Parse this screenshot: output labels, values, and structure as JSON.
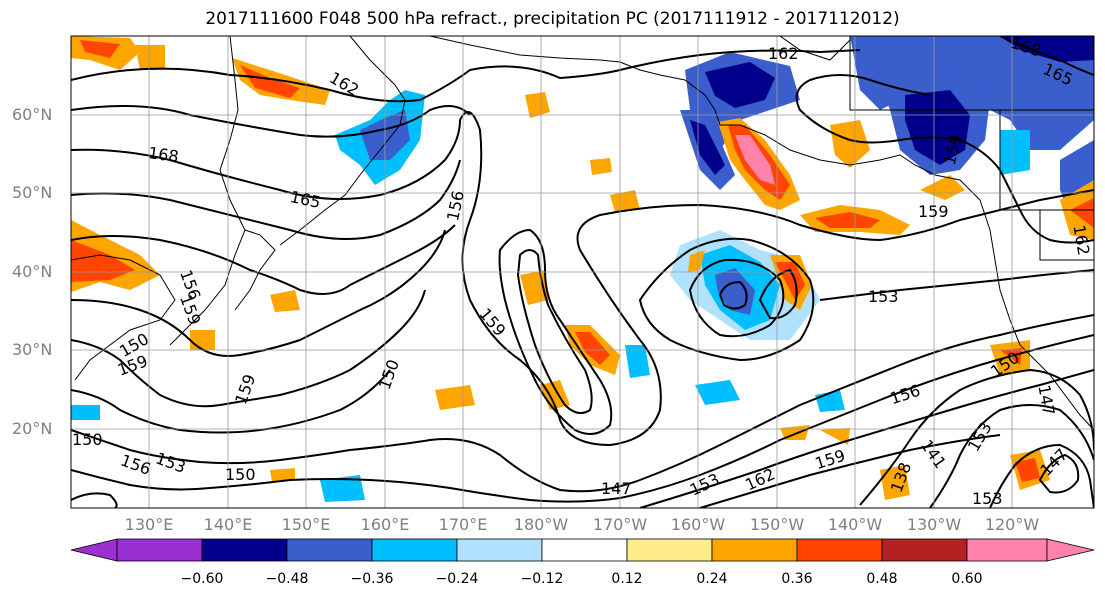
{
  "title": "2017111600 F048 500 hPa refract., precipitation PC (2017111912 - 2017112012)",
  "lat_labels": [
    "60°N",
    "50°N",
    "40°N",
    "30°N",
    "20°N"
  ],
  "lon_labels": [
    "130°E",
    "140°E",
    "150°E",
    "160°E",
    "170°E",
    "180°W",
    "170°W",
    "160°W",
    "150°W",
    "140°W",
    "130°W",
    "120°W"
  ],
  "contour_labels": [
    "162",
    "168",
    "165",
    "162",
    "168",
    "165",
    "156",
    "159",
    "159",
    "156",
    "159",
    "150",
    "159",
    "150",
    "153",
    "156",
    "150",
    "159",
    "150",
    "147",
    "153",
    "162",
    "159",
    "156",
    "153",
    "147",
    "153",
    "150",
    "147",
    "141",
    "153",
    "138",
    "162",
    "159"
  ],
  "colorbar": {
    "ticks": [
      "−0.60",
      "−0.48",
      "−0.36",
      "−0.24",
      "−0.12",
      "0.12",
      "0.24",
      "0.36",
      "0.48",
      "0.60"
    ],
    "colors": [
      "#9b30d0",
      "#00008b",
      "#3a5fcd",
      "#00bfff",
      "#b0e2ff",
      "#ffffff",
      "#ffec8b",
      "#ffa500",
      "#ff4500",
      "#b22222",
      "#ff82ab"
    ]
  }
}
